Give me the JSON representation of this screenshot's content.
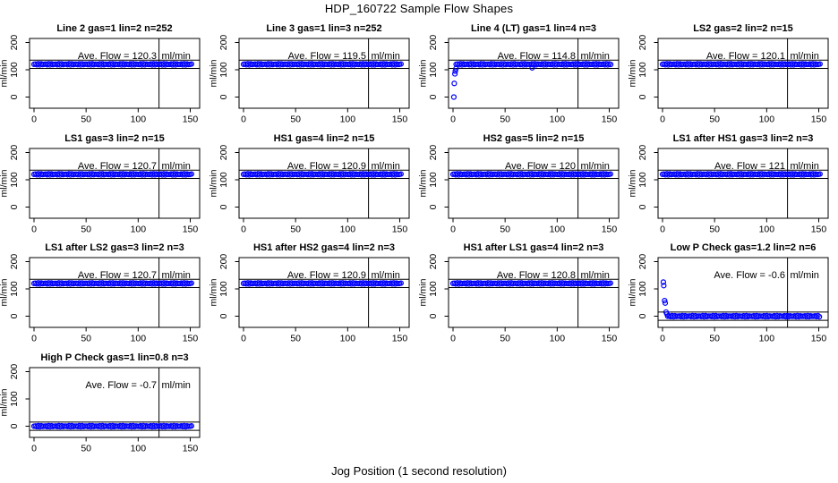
{
  "main": {
    "title": "HDP_160722  Sample Flow Shapes",
    "xlabel": "Jog Position (1 second resolution)"
  },
  "chart_data": {
    "type": "scatter",
    "title": "HDP_160722  Sample Flow Shapes",
    "xlabel": "Jog Position (1 second resolution)",
    "ylabel": "ml/min",
    "layout": {
      "rows": 4,
      "cols": 4,
      "x_ticks": [
        0,
        50,
        100,
        150
      ],
      "y_ticks": [
        0,
        100,
        200
      ],
      "xlim": [
        -4,
        159
      ],
      "ylim": [
        -41,
        215
      ],
      "vline_x": 120,
      "ave_label_prefix": "Ave. Flow = ",
      "unit": "ml/min",
      "point_color": "#0000ff",
      "axis_color": "#000000",
      "point_style": "open-circle",
      "grid": false
    },
    "plots": [
      {
        "id": "line-2",
        "title": "Line 2 gas=1 lin=2 n=252",
        "ave_flow": "120.3",
        "band_y": 120,
        "band_x": [
          0,
          152
        ],
        "ref_lines": [
          110,
          130
        ],
        "startup_points": []
      },
      {
        "id": "line-3",
        "title": "Line 3 gas=1 lin=3 n=252",
        "ave_flow": "119.5",
        "band_y": 120,
        "band_x": [
          0,
          152
        ],
        "ref_lines": [
          110,
          130
        ],
        "startup_points": []
      },
      {
        "id": "line-4-lt",
        "title": "Line 4 (LT) gas=1 lin=4 n=3",
        "ave_flow": "114.8",
        "band_y": 120,
        "band_x": [
          3,
          152
        ],
        "ref_lines": [
          110,
          130
        ],
        "startup_points": [
          [
            0.8,
            0
          ],
          [
            1.2,
            50
          ],
          [
            1.8,
            85
          ],
          [
            2.2,
            95
          ],
          [
            2.8,
            104
          ],
          [
            76,
            107
          ]
        ]
      },
      {
        "id": "ls2",
        "title": "LS2 gas=2 lin=2 n=15",
        "ave_flow": "120.1",
        "band_y": 120,
        "band_x": [
          0,
          152
        ],
        "ref_lines": [
          110,
          130
        ],
        "startup_points": []
      },
      {
        "id": "ls1",
        "title": "LS1 gas=3 lin=2 n=15",
        "ave_flow": "120.7",
        "band_y": 120,
        "band_x": [
          0,
          152
        ],
        "ref_lines": [
          110,
          130
        ],
        "startup_points": []
      },
      {
        "id": "hs1",
        "title": "HS1 gas=4 lin=2 n=15",
        "ave_flow": "120.9",
        "band_y": 120,
        "band_x": [
          0,
          152
        ],
        "ref_lines": [
          110,
          130
        ],
        "startup_points": []
      },
      {
        "id": "hs2",
        "title": "HS2 gas=5 lin=2 n=15",
        "ave_flow": "120",
        "band_y": 120,
        "band_x": [
          0,
          152
        ],
        "ref_lines": [
          110,
          130
        ],
        "startup_points": []
      },
      {
        "id": "ls1-after-hs1",
        "title": "LS1 after HS1 gas=3 lin=2 n=3",
        "ave_flow": "121",
        "band_y": 120,
        "band_x": [
          0,
          152
        ],
        "ref_lines": [
          110,
          130
        ],
        "startup_points": []
      },
      {
        "id": "ls1-after-ls2",
        "title": "LS1 after LS2 gas=3 lin=2 n=3",
        "ave_flow": "120.7",
        "band_y": 120,
        "band_x": [
          0,
          152
        ],
        "ref_lines": [
          110,
          130
        ],
        "startup_points": []
      },
      {
        "id": "hs1-after-hs2",
        "title": "HS1 after HS2 gas=4 lin=2 n=3",
        "ave_flow": "120.9",
        "band_y": 120,
        "band_x": [
          0,
          152
        ],
        "ref_lines": [
          110,
          130
        ],
        "startup_points": []
      },
      {
        "id": "hs1-after-ls1",
        "title": "HS1 after LS1 gas=4 lin=2 n=3",
        "ave_flow": "120.8",
        "band_y": 120,
        "band_x": [
          0,
          152
        ],
        "ref_lines": [
          110,
          130
        ],
        "startup_points": []
      },
      {
        "id": "low-p-check",
        "title": "Low P Check gas=1.2 lin=2 n=6",
        "ave_flow": "-0.6",
        "band_y": 0,
        "band_x": [
          5,
          152
        ],
        "ref_lines": [
          -10,
          10
        ],
        "startup_points": [
          [
            0.8,
            125
          ],
          [
            1.2,
            112
          ],
          [
            2,
            57
          ],
          [
            2.6,
            48
          ],
          [
            3.4,
            15
          ],
          [
            4.2,
            8
          ]
        ]
      },
      {
        "id": "high-p-check",
        "title": "High P Check gas=1 lin=0.8 n=3",
        "ave_flow": "-0.7",
        "band_y": 0,
        "band_x": [
          0,
          152
        ],
        "ref_lines": [
          -10,
          10
        ],
        "startup_points": []
      }
    ]
  }
}
